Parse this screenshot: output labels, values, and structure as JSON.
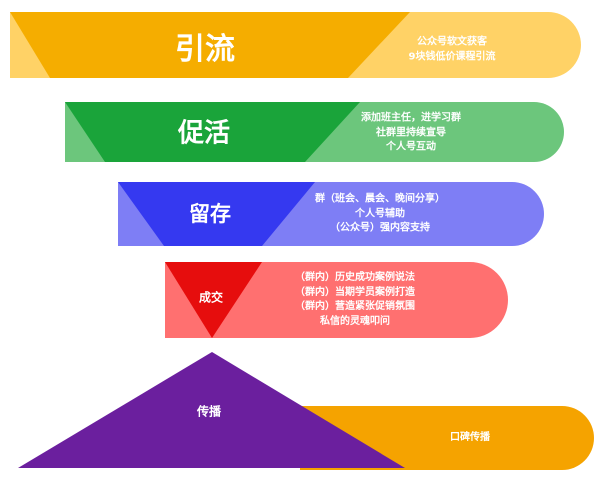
{
  "stages": [
    {
      "title": "引流",
      "color": "#f5ad00",
      "light": "#ffd266",
      "lines": [
        "公众号软文获客",
        "9块钱低价课程引流"
      ]
    },
    {
      "title": "促活",
      "color": "#1aa43a",
      "light": "#6cc67c",
      "lines": [
        "添加班主任，进学习群",
        "社群里持续宣导",
        "个人号互动"
      ]
    },
    {
      "title": "留存",
      "color": "#3539f0",
      "light": "#7e7ef5",
      "lines": [
        "群（班会、晨会、晚间分享）",
        "个人号辅助",
        "（公众号）强内容支持"
      ]
    },
    {
      "title": "成交",
      "color": "#e60d0d",
      "light": "#ff7070",
      "lines": [
        "（群内）历史成功案例说法",
        "（群内）当期学员案例打造",
        "（群内）营造紧张促销氛围",
        "私信的灵魂叩问"
      ]
    },
    {
      "title": "传播",
      "color": "#6b1f9e",
      "light": "#f5a300",
      "lines": [
        "口碑传播"
      ]
    }
  ]
}
